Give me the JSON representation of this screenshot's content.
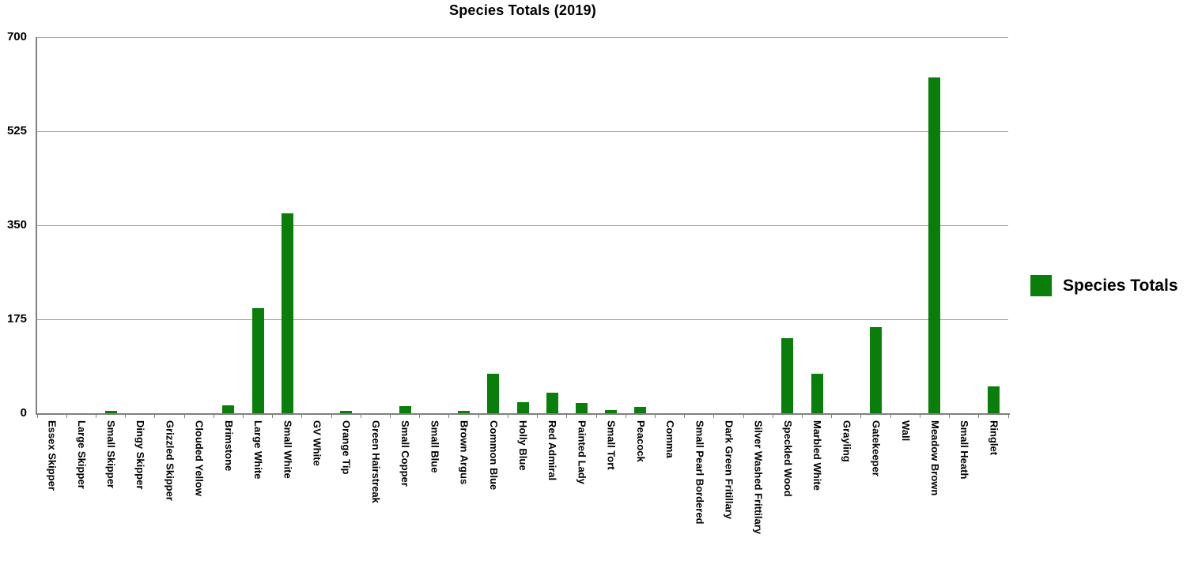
{
  "colors": {
    "bar": "#0a7e0a",
    "gridline": "#a6a6a6",
    "axis": "#808080",
    "text": "#000000",
    "background": "#ffffff"
  },
  "chart_data": {
    "type": "bar",
    "title": "Species Totals (2019)",
    "series_name": "Species Totals",
    "categories": [
      "Essex Skipper",
      "Large Skipper",
      "Small Skipper",
      "Dingy Skipper",
      "Grizzled Skipper",
      "Clouded Yellow",
      "Brimstone",
      "Large White",
      "Small White",
      "GV White",
      "Orange Tip",
      "Green Hairstreak",
      "Small Copper",
      "Small Blue",
      "Brown Argus",
      "Common Blue",
      "Holly Blue",
      "Red Admiral",
      "Painted Lady",
      "Small Tort",
      "Peacock",
      "Comma",
      "Small Pearl Bordered",
      "Dark Green Fritillary",
      "Silver Washed Frittilary",
      "Speckled Wood",
      "Marbled White",
      "Grayling",
      "Gatekeeper",
      "Wall",
      "Meadow Brown",
      "Small Heath",
      "Ringlet"
    ],
    "values": [
      0,
      0,
      5,
      0,
      0,
      0,
      14,
      195,
      372,
      0,
      5,
      0,
      13,
      0,
      5,
      74,
      21,
      38,
      19,
      6,
      12,
      0,
      0,
      0,
      0,
      140,
      73,
      0,
      160,
      0,
      625,
      0,
      50
    ],
    "xlabel": "",
    "ylabel": "",
    "ylim": [
      0,
      700
    ],
    "yticks": [
      0,
      175,
      350,
      525,
      700
    ],
    "grid": true,
    "legend_position": "right",
    "x_label_rotation": "vertical"
  }
}
